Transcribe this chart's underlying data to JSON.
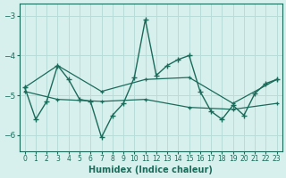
{
  "xlabel": "Humidex (Indice chaleur)",
  "bg_color": "#d7f0ed",
  "grid_color": "#b8ddd9",
  "line_color": "#1a6b5a",
  "xlim": [
    -0.5,
    23.5
  ],
  "ylim": [
    -6.4,
    -2.7
  ],
  "yticks": [
    -6,
    -5,
    -4,
    -3
  ],
  "xticks": [
    0,
    1,
    2,
    3,
    4,
    5,
    6,
    7,
    8,
    9,
    10,
    11,
    12,
    13,
    14,
    15,
    16,
    17,
    18,
    19,
    20,
    21,
    22,
    23
  ],
  "series_main": [
    [
      0,
      -4.8
    ],
    [
      1,
      -5.6
    ],
    [
      2,
      -5.15
    ],
    [
      3,
      -4.25
    ],
    [
      4,
      -4.6
    ],
    [
      5,
      -5.1
    ],
    [
      6,
      -5.15
    ],
    [
      7,
      -6.05
    ],
    [
      8,
      -5.5
    ],
    [
      9,
      -5.2
    ],
    [
      10,
      -4.55
    ],
    [
      11,
      -3.1
    ],
    [
      12,
      -4.5
    ],
    [
      13,
      -4.25
    ],
    [
      14,
      -4.1
    ],
    [
      15,
      -4.0
    ],
    [
      16,
      -4.9
    ],
    [
      17,
      -5.4
    ],
    [
      18,
      -5.6
    ],
    [
      19,
      -5.25
    ],
    [
      20,
      -5.5
    ],
    [
      21,
      -4.95
    ],
    [
      22,
      -4.7
    ],
    [
      23,
      -4.6
    ]
  ],
  "series_upper": [
    [
      0,
      -4.8
    ],
    [
      3,
      -4.25
    ],
    [
      7,
      -4.9
    ],
    [
      11,
      -4.6
    ],
    [
      15,
      -4.55
    ],
    [
      19,
      -5.2
    ],
    [
      23,
      -4.6
    ]
  ],
  "series_lower": [
    [
      0,
      -4.9
    ],
    [
      3,
      -5.1
    ],
    [
      7,
      -5.15
    ],
    [
      11,
      -5.1
    ],
    [
      15,
      -5.3
    ],
    [
      19,
      -5.35
    ],
    [
      23,
      -5.2
    ]
  ]
}
